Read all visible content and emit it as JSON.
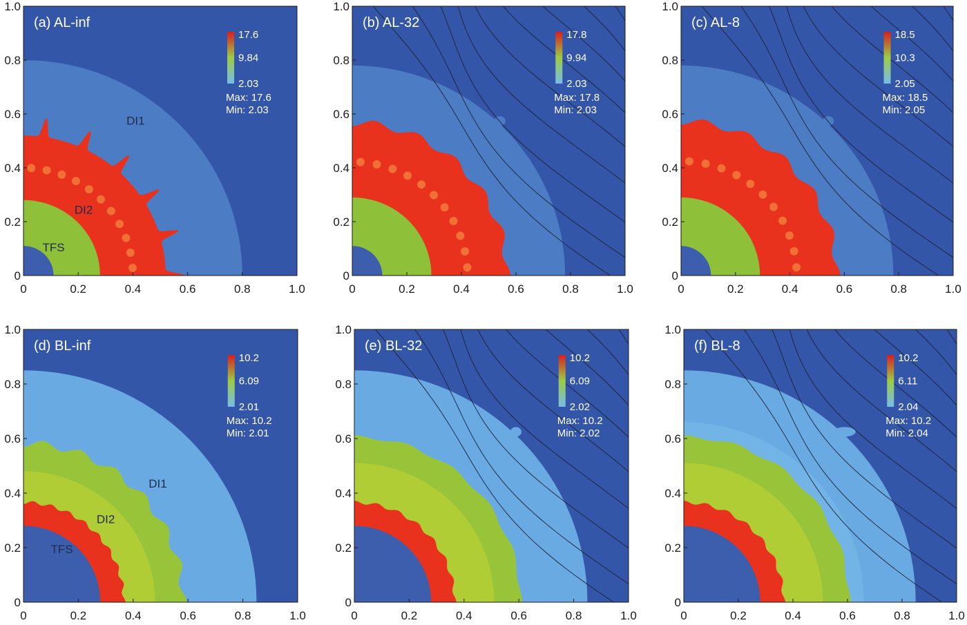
{
  "colors": {
    "background": "#3456a8",
    "di1_a": "#4b7cc4",
    "di1_b": "#6aaae2",
    "di1_f_patch": "#7fc0ec",
    "di2_a": "#e8321e",
    "di2_b": "#98c43a",
    "di2_highlight": "#f5a44a",
    "tfs_a": "#8ec03a",
    "tfs_b": "#e8321e",
    "core_a": "#3d5eac",
    "core_b": "#3d5eac",
    "contour": "#1b2233",
    "cbar_high": "#d81e1e",
    "cbar_mid": "#9ccc44",
    "cbar_low": "#78bce8",
    "label_text": "#ffffff",
    "region_text": "#1f2b4a",
    "axis": "#1a1a1a"
  },
  "chart_data": [
    {
      "id": "a",
      "type": "heatmap",
      "title": "(a) AL-inf",
      "xlim": [
        0,
        1.0
      ],
      "ylim": [
        0,
        1.0
      ],
      "xticks": [
        "0",
        "0.2",
        "0.4",
        "0.6",
        "0.8",
        "1.0"
      ],
      "yticks": [
        "0",
        "0.2",
        "0.4",
        "0.6",
        "0.8",
        "1.0"
      ],
      "colorbar": {
        "max": "17.6",
        "mid": "9.84",
        "min": "2.03",
        "max_text": "Max: 17.6",
        "min_text": "Min: 2.03"
      },
      "regions": {
        "TFS": 0.11,
        "DI2": [
          0.28,
          0.52
        ],
        "DI1": 0.8
      },
      "fingers": {
        "count": 11,
        "length": 0.07
      },
      "region_labels": [
        {
          "text": "DI1",
          "x": 0.41,
          "y": 0.56
        },
        {
          "text": "DI2",
          "x": 0.22,
          "y": 0.23
        },
        {
          "text": "TFS",
          "x": 0.11,
          "y": 0.09
        }
      ],
      "contours": false
    },
    {
      "id": "b",
      "type": "heatmap",
      "title": "(b) AL-32",
      "xlim": [
        0,
        1.0
      ],
      "ylim": [
        0,
        1.0
      ],
      "xticks": [
        "0",
        "0.2",
        "0.4",
        "0.6",
        "0.8",
        "1.0"
      ],
      "yticks": [
        "0",
        "0.2",
        "0.4",
        "0.6",
        "0.8",
        "1.0"
      ],
      "colorbar": {
        "max": "17.8",
        "mid": "9.94",
        "min": "2.03",
        "max_text": "Max: 17.8",
        "min_text": "Min: 2.03"
      },
      "regions": {
        "TFS": 0.11,
        "DI2": [
          0.29,
          0.555
        ],
        "DI1": 0.78
      },
      "fingers": {
        "count": 11,
        "length": 0.025
      },
      "region_labels": [],
      "contours": true
    },
    {
      "id": "c",
      "type": "heatmap",
      "title": "(c) AL-8",
      "xlim": [
        0,
        1.0
      ],
      "ylim": [
        0,
        1.0
      ],
      "xticks": [
        "0",
        "0.2",
        "0.4",
        "0.6",
        "0.8",
        "1.0"
      ],
      "yticks": [
        "0",
        "0.2",
        "0.4",
        "0.6",
        "0.8",
        "1.0"
      ],
      "colorbar": {
        "max": "18.5",
        "mid": "10.3",
        "min": "2.05",
        "max_text": "Max: 18.5",
        "min_text": "Min: 2.05"
      },
      "regions": {
        "TFS": 0.11,
        "DI2": [
          0.29,
          0.56
        ],
        "DI1": 0.78
      },
      "fingers": {
        "count": 11,
        "length": 0.025
      },
      "region_labels": [],
      "contours": true
    },
    {
      "id": "d",
      "type": "heatmap",
      "title": "(d) BL-inf",
      "xlim": [
        0,
        1.0
      ],
      "ylim": [
        0,
        1.0
      ],
      "xticks": [
        "0",
        "0.2",
        "0.4",
        "0.6",
        "0.8",
        "1.0"
      ],
      "yticks": [
        "0",
        "0.2",
        "0.4",
        "0.6",
        "0.8",
        "1.0"
      ],
      "colorbar": {
        "max": "10.2",
        "mid": "6.09",
        "min": "2.01",
        "max_text": "Max: 10.2",
        "min_text": "Min: 2.01"
      },
      "regions": {
        "TFS": 0.28,
        "DI2": [
          0.36,
          0.57
        ],
        "DI1": 0.85
      },
      "fingers": {
        "count": 13,
        "length": 0.025
      },
      "region_labels": [
        {
          "text": "DI1",
          "x": 0.49,
          "y": 0.42
        },
        {
          "text": "DI2",
          "x": 0.3,
          "y": 0.29
        },
        {
          "text": "TFS",
          "x": 0.14,
          "y": 0.18
        }
      ],
      "contours": false
    },
    {
      "id": "e",
      "type": "heatmap",
      "title": "(e) BL-32",
      "xlim": [
        0,
        1.0
      ],
      "ylim": [
        0,
        1.0
      ],
      "xticks": [
        "0",
        "0.2",
        "0.4",
        "0.6",
        "0.8",
        "1.0"
      ],
      "yticks": [
        "0",
        "0.2",
        "0.4",
        "0.6",
        "0.8",
        "1.0"
      ],
      "colorbar": {
        "max": "10.2",
        "mid": "6.09",
        "min": "2.02",
        "max_text": "Max: 10.2",
        "min_text": "Min: 2.02"
      },
      "regions": {
        "TFS": 0.28,
        "DI2": [
          0.36,
          0.6
        ],
        "DI1": 0.85
      },
      "fingers": {
        "count": 10,
        "length": 0.012
      },
      "region_labels": [],
      "contours": true
    },
    {
      "id": "f",
      "type": "heatmap",
      "title": "(f) BL-8",
      "xlim": [
        0,
        1.0
      ],
      "ylim": [
        0,
        1.0
      ],
      "xticks": [
        "0",
        "0.2",
        "0.4",
        "0.6",
        "0.8",
        "1.0"
      ],
      "yticks": [
        "0",
        "0.2",
        "0.4",
        "0.6",
        "0.8",
        "1.0"
      ],
      "colorbar": {
        "max": "10.2",
        "mid": "6.11",
        "min": "2.04",
        "max_text": "Max: 10.2",
        "min_text": "Min: 2.04"
      },
      "regions": {
        "TFS": 0.28,
        "DI2": [
          0.36,
          0.6
        ],
        "DI1": 0.85
      },
      "fingers": {
        "count": 10,
        "length": 0.012
      },
      "region_labels": [],
      "contours": true
    }
  ]
}
